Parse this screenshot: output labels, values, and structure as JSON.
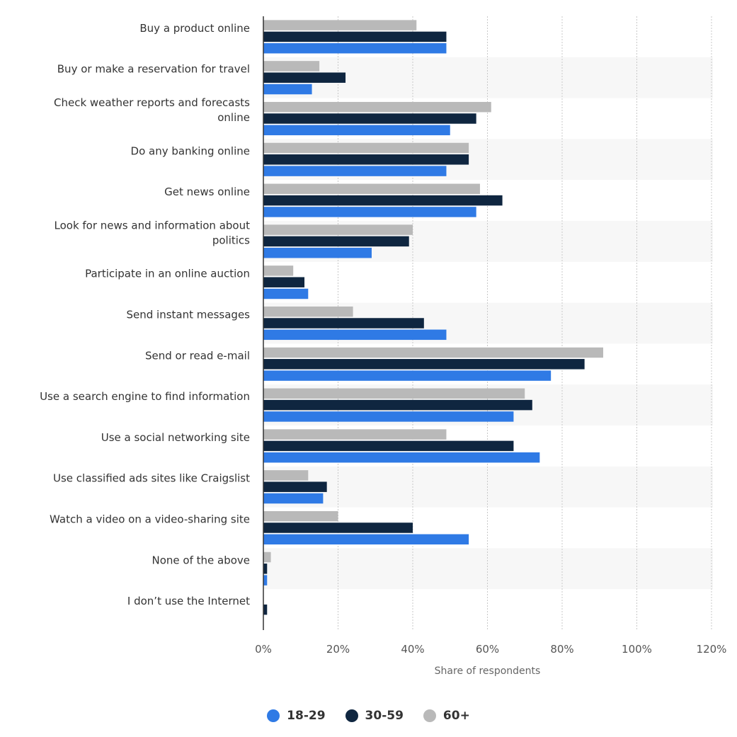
{
  "chart_data": {
    "type": "bar",
    "orientation": "horizontal",
    "title": "",
    "xlabel": "Share of respondents",
    "ylabel": "",
    "xlim": [
      0,
      120
    ],
    "x_ticks": [
      "0%",
      "20%",
      "40%",
      "60%",
      "80%",
      "100%",
      "120%"
    ],
    "grid": true,
    "legend_position": "bottom-center",
    "categories": [
      "Buy a product online",
      "Buy or make a reservation for travel",
      "Check weather reports and forecasts online",
      "Do any banking online",
      "Get news online",
      "Look for news and information about politics",
      "Participate in an online auction",
      "Send instant messages",
      "Send or read e-mail",
      "Use a search engine to find information",
      "Use a social networking site",
      "Use classified ads sites like Craigslist",
      "Watch a video on a video-sharing site",
      "None of the above",
      "I don’t use the Internet"
    ],
    "series": [
      {
        "name": "60+",
        "color": "#b9b9b9",
        "values": [
          41,
          15,
          61,
          55,
          58,
          40,
          8,
          24,
          91,
          70,
          49,
          12,
          20,
          2,
          0
        ]
      },
      {
        "name": "30-59",
        "color": "#0f2640",
        "values": [
          49,
          22,
          57,
          55,
          64,
          39,
          11,
          43,
          86,
          72,
          67,
          17,
          40,
          1,
          1
        ]
      },
      {
        "name": "18-29",
        "color": "#2f7ae5",
        "values": [
          49,
          13,
          50,
          49,
          57,
          29,
          12,
          49,
          77,
          67,
          74,
          16,
          55,
          1,
          0
        ]
      }
    ],
    "legend": [
      {
        "label": "18-29",
        "color": "#2f7ae5"
      },
      {
        "label": "30-59",
        "color": "#0f2640"
      },
      {
        "label": "60+",
        "color": "#b9b9b9"
      }
    ]
  }
}
